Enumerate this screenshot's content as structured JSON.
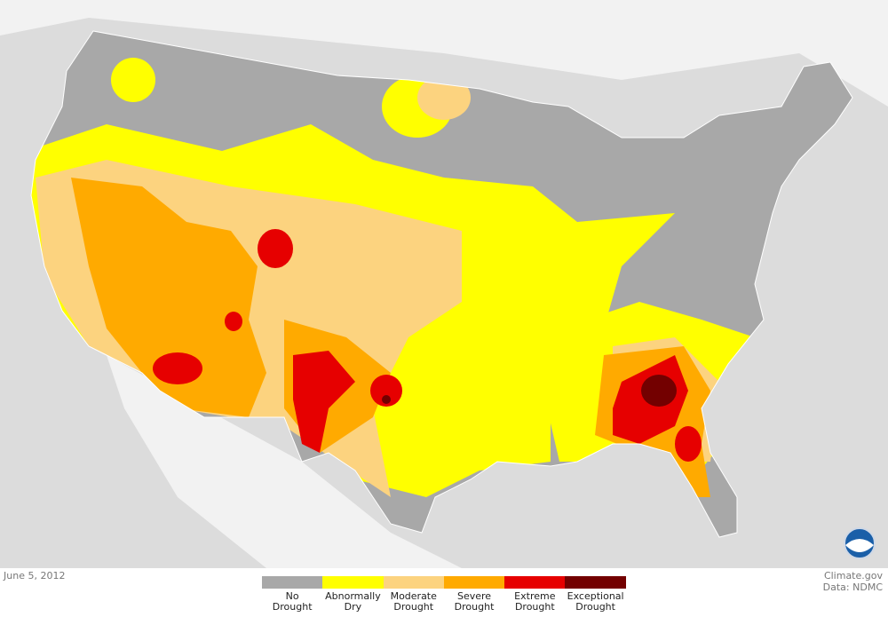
{
  "footer": {
    "date": "June 5, 2012",
    "source": "Climate.gov",
    "data_credit": "Data: NDMC"
  },
  "legend": {
    "items": [
      {
        "label": "No Drought",
        "color": "#a8a8a8"
      },
      {
        "label": "Abnormally Dry",
        "color": "#ffff00"
      },
      {
        "label": "Moderate Drought",
        "color": "#fcd37f"
      },
      {
        "label": "Severe Drought",
        "color": "#ffaa00"
      },
      {
        "label": "Extreme Drought",
        "color": "#e60000"
      },
      {
        "label": "Exceptional Drought",
        "color": "#730000"
      }
    ]
  }
}
